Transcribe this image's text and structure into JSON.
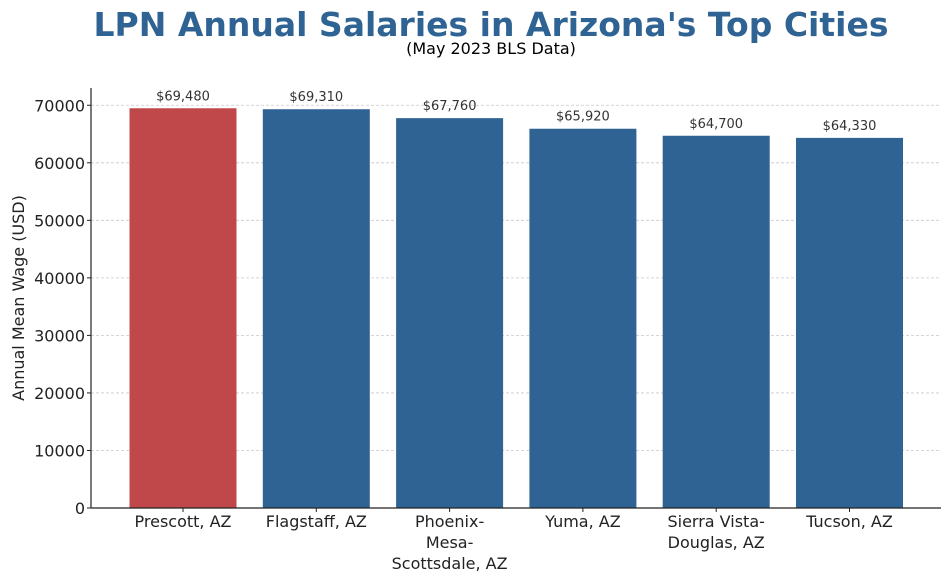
{
  "chart_data": {
    "type": "bar",
    "title": "LPN Annual Salaries in Arizona's Top Cities",
    "subtitle": "(May 2023 BLS Data)",
    "xlabel": "",
    "ylabel": "Annual Mean Wage (USD)",
    "categories": [
      [
        "Prescott, AZ"
      ],
      [
        "Flagstaff, AZ"
      ],
      [
        "Phoenix-",
        "Mesa-",
        "Scottsdale, AZ"
      ],
      [
        "Yuma, AZ"
      ],
      [
        "Sierra Vista-",
        "Douglas, AZ"
      ],
      [
        "Tucson, AZ"
      ]
    ],
    "values": [
      69480,
      69310,
      67760,
      65920,
      64700,
      64330
    ],
    "data_labels": [
      "$69,480",
      "$69,310",
      "$67,760",
      "$65,920",
      "$64,700",
      "$64,330"
    ],
    "bar_colors": [
      "#c0474a",
      "#2f6393",
      "#2f6393",
      "#2f6393",
      "#2f6393",
      "#2f6393"
    ],
    "ylim": [
      0,
      73000
    ],
    "yticks": [
      0,
      10000,
      20000,
      30000,
      40000,
      50000,
      60000,
      70000
    ],
    "ytick_labels": [
      "0",
      "10000",
      "20000",
      "30000",
      "40000",
      "50000",
      "60000",
      "70000"
    ],
    "grid": "horizontal-dashed",
    "legend": "none",
    "colors": {
      "title": "#2f6393",
      "highlight": "#c0474a",
      "bar": "#2f6393",
      "grid": "#c8c8c8",
      "axis": "#222222"
    }
  }
}
